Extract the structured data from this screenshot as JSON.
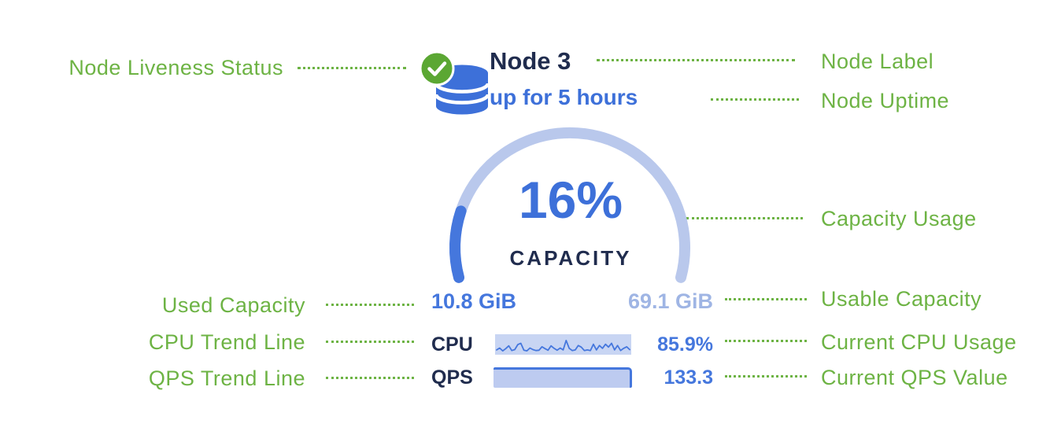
{
  "colors": {
    "green": "#6db344",
    "navy": "#202c4e",
    "blue": "#3d70d9",
    "blue-mid": "#4577dd",
    "blue-light": "#9fb5e4",
    "track": "#b9c8ec",
    "spark-bg": "#c8d5f3",
    "qps-fill": "#bdcbf0",
    "check-green": "#5ba733"
  },
  "annotations": {
    "left": [
      {
        "label": "Node Liveness Status"
      },
      {
        "label": "Used Capacity"
      },
      {
        "label": "CPU Trend Line"
      },
      {
        "label": "QPS Trend Line"
      }
    ],
    "right": [
      {
        "label": "Node Label"
      },
      {
        "label": "Node Uptime"
      },
      {
        "label": "Capacity Usage"
      },
      {
        "label": "Usable Capacity"
      },
      {
        "label": "Current CPU Usage"
      },
      {
        "label": "Current QPS Value"
      }
    ]
  },
  "node": {
    "label": "Node 3",
    "uptime": "up for 5 hours",
    "liveness": "healthy",
    "capacity_percent_label": "16%",
    "capacity_caption": "CAPACITY",
    "used_capacity": "10.8 GiB",
    "usable_capacity": "69.1 GiB",
    "cpu_label": "CPU",
    "cpu_value": "85.9%",
    "qps_label": "QPS",
    "qps_value": "133.3"
  },
  "chart_data": [
    {
      "type": "gauge",
      "title": "CAPACITY",
      "value_percent": 16,
      "used_gib": 10.8,
      "usable_gib": 69.1,
      "sweep_deg": 210
    },
    {
      "type": "line",
      "name": "CPU trend sparkline",
      "current": "85.9%",
      "values": [
        18,
        30,
        12,
        26,
        44,
        14,
        20,
        52,
        60,
        16,
        12,
        30,
        20,
        14,
        16,
        38,
        26,
        16,
        44,
        28,
        16,
        30,
        18,
        78,
        28,
        14,
        18,
        46,
        36,
        14,
        18,
        14,
        54,
        18,
        46,
        28,
        54,
        36,
        60,
        18,
        46,
        14,
        28,
        38,
        20
      ]
    },
    {
      "type": "area",
      "name": "QPS trend sparkline",
      "current": 133.3,
      "values": [
        97,
        97,
        97,
        97,
        97,
        97,
        97,
        97,
        97,
        97
      ]
    }
  ]
}
